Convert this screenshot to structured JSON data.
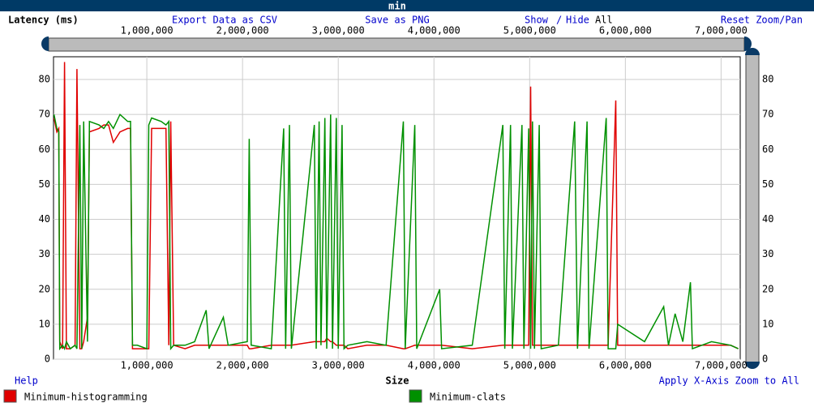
{
  "chart_data": {
    "type": "line",
    "title": "min",
    "y_label": "Latency (ms)",
    "x_label": "Size",
    "xlim": [
      25000,
      7200000
    ],
    "ylim": [
      0,
      86.5
    ],
    "grid": true,
    "xticks": [
      {
        "value": 1000000,
        "label": "1,000,000"
      },
      {
        "value": 2000000,
        "label": "2,000,000"
      },
      {
        "value": 3000000,
        "label": "3,000,000"
      },
      {
        "value": 4000000,
        "label": "4,000,000"
      },
      {
        "value": 5000000,
        "label": "5,000,000"
      },
      {
        "value": 6000000,
        "label": "6,000,000"
      },
      {
        "value": 7000000,
        "label": "7,000,000"
      }
    ],
    "yticks": [
      0,
      10,
      20,
      30,
      40,
      50,
      60,
      70,
      80
    ],
    "x": [
      30000,
      60000,
      80000,
      90000,
      120000,
      140000,
      160000,
      200000,
      250000,
      270000,
      300000,
      320000,
      340000,
      380000,
      400000,
      500000,
      550000,
      600000,
      650000,
      720000,
      800000,
      830000,
      850000,
      900000,
      1000000,
      1020000,
      1050000,
      1150000,
      1200000,
      1230000,
      1250000,
      1280000,
      1400000,
      1500000,
      1620000,
      1650000,
      1800000,
      1850000,
      2050000,
      2070000,
      2090000,
      2300000,
      2430000,
      2450000,
      2490000,
      2510000,
      2750000,
      2770000,
      2800000,
      2820000,
      2860000,
      2880000,
      2920000,
      2940000,
      2980000,
      3000000,
      3040000,
      3060000,
      3100000,
      3300000,
      3500000,
      3680000,
      3700000,
      3800000,
      3820000,
      4060000,
      4080000,
      4400000,
      4720000,
      4740000,
      4800000,
      4820000,
      4920000,
      4940000,
      4990000,
      5010000,
      5030000,
      5050000,
      5100000,
      5120000,
      5300000,
      5470000,
      5500000,
      5600000,
      5620000,
      5800000,
      5820000,
      5900000,
      5920000,
      6200000,
      6400000,
      6450000,
      6520000,
      6600000,
      6680000,
      6700000,
      6900000,
      7100000,
      7180000
    ],
    "series": [
      {
        "name": "Minimum-histogramming",
        "color": "#e00000",
        "values": [
          69,
          65,
          66,
          5,
          3,
          85,
          3,
          3,
          4,
          83,
          3,
          3,
          5,
          12,
          65,
          66,
          67,
          67,
          62,
          65,
          66,
          66,
          3,
          3,
          3,
          3,
          66,
          66,
          66,
          4,
          68,
          4,
          3,
          4,
          4,
          4,
          4,
          4,
          4,
          3,
          3,
          4,
          4,
          4,
          4,
          4,
          5,
          5,
          5,
          5,
          5,
          6,
          5,
          5,
          4,
          4,
          4,
          4,
          3,
          4,
          4,
          3,
          3,
          4,
          4,
          4,
          4,
          3,
          4,
          4,
          4,
          4,
          4,
          4,
          4,
          78,
          4,
          4,
          4,
          4,
          4,
          4,
          4,
          4,
          4,
          4,
          4,
          74,
          4,
          4,
          4,
          4,
          4,
          4,
          4,
          4,
          4,
          4,
          3
        ]
      },
      {
        "name": "Minimum-clats",
        "color": "#009000",
        "values": [
          70,
          66,
          65,
          3,
          4,
          3,
          5,
          3,
          4,
          3,
          67,
          3,
          68,
          5,
          68,
          67,
          66,
          68,
          66,
          70,
          68,
          68,
          4,
          4,
          3,
          67,
          69,
          68,
          67,
          68,
          3,
          4,
          4,
          5,
          14,
          3,
          12,
          4,
          5,
          63,
          4,
          3,
          66,
          3,
          67,
          3,
          67,
          3,
          68,
          4,
          69,
          3,
          70,
          3,
          69,
          3,
          67,
          3,
          4,
          5,
          4,
          68,
          3,
          67,
          3,
          20,
          3,
          4,
          67,
          3,
          67,
          3,
          67,
          3,
          66,
          3,
          68,
          3,
          67,
          3,
          4,
          68,
          3,
          68,
          3,
          69,
          3,
          3,
          10,
          5,
          15,
          4,
          13,
          5,
          22,
          3,
          5,
          4,
          3
        ]
      }
    ]
  },
  "ui": {
    "export": "Export Data as CSV",
    "save": "Save as PNG",
    "show": "Show",
    "slash": "/",
    "hide": "Hide",
    "all": "All",
    "reset": "Reset Zoom/Pan",
    "help": "Help",
    "apply": "Apply X-Axis Zoom to All"
  }
}
